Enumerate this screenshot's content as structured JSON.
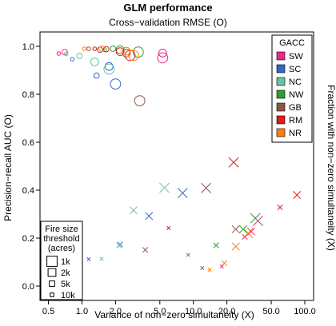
{
  "chart_data": {
    "type": "scatter",
    "title": "GLM performance",
    "subtitle": "Cross−validation RMSE (O)",
    "xlabel": "Variance of non−zero simultaneity (X)",
    "ylabel_left": "Precision−recall AUC (O)",
    "ylabel_right": "Fraction with non−zero simultaneity (X)",
    "x_scale": "log",
    "xlim": [
      0.42,
      120
    ],
    "ylim": [
      -0.06,
      1.06
    ],
    "x_ticks": [
      0.5,
      1.0,
      2.0,
      5.0,
      10.0,
      20.0,
      50.0,
      100.0
    ],
    "x_tick_labels": [
      "0.5",
      "1.0",
      "2.0",
      "5.0",
      "10.0",
      "20.0",
      "50.0",
      "100.0"
    ],
    "y_ticks": [
      0.0,
      0.2,
      0.4,
      0.6,
      0.8,
      1.0
    ],
    "y_tick_labels": [
      "0.0",
      "0.2",
      "0.4",
      "0.6",
      "0.8",
      "1.0"
    ],
    "legend_gacc": {
      "title": "GACC",
      "placement": "top-right",
      "entries": [
        {
          "label": "SW",
          "color": "#e7298a"
        },
        {
          "label": "SC",
          "color": "#3366cc"
        },
        {
          "label": "NC",
          "color": "#66c2a5"
        },
        {
          "label": "NW",
          "color": "#2ca02c"
        },
        {
          "label": "GB",
          "color": "#8c564b"
        },
        {
          "label": "RM",
          "color": "#e31a1c"
        },
        {
          "label": "NR",
          "color": "#ff7f0e"
        }
      ]
    },
    "legend_size": {
      "title_lines": [
        "Fire size",
        "threshold",
        "(acres)"
      ],
      "placement": "bottom-left",
      "entries": [
        {
          "label": "1k",
          "size": 4
        },
        {
          "label": "2k",
          "size": 3
        },
        {
          "label": "5k",
          "size": 2
        },
        {
          "label": "10k",
          "size": 1
        }
      ]
    },
    "series": [
      {
        "name": "SW",
        "color": "#e7298a",
        "o": [
          [
            5.3,
            0.952,
            4
          ],
          [
            5.3,
            0.972,
            3
          ],
          [
            0.7,
            0.976,
            2
          ],
          [
            0.62,
            0.97,
            1
          ]
        ],
        "x": [
          [
            38,
            0.272,
            4
          ],
          [
            33,
            0.227,
            3
          ],
          [
            29,
            0.205,
            2
          ],
          [
            18,
            0.082,
            1
          ]
        ]
      },
      {
        "name": "SC",
        "color": "#3366cc",
        "o": [
          [
            2.0,
            0.843,
            4
          ],
          [
            1.75,
            0.916,
            3
          ],
          [
            1.35,
            0.878,
            2
          ],
          [
            0.82,
            0.946,
            1
          ]
        ],
        "x": [
          [
            8,
            0.388,
            4
          ],
          [
            4,
            0.292,
            3
          ],
          [
            2.2,
            0.173,
            2
          ],
          [
            1.15,
            0.112,
            1
          ]
        ]
      },
      {
        "name": "NC",
        "color": "#66c2a5",
        "o": [
          [
            1.75,
            0.905,
            4
          ],
          [
            1.3,
            0.935,
            3
          ],
          [
            0.95,
            0.96,
            2
          ],
          [
            0.72,
            0.968,
            1
          ]
        ],
        "x": [
          [
            5.5,
            0.41,
            4
          ],
          [
            2.9,
            0.316,
            3
          ],
          [
            2.15,
            0.17,
            2
          ],
          [
            1.5,
            0.114,
            1
          ]
        ]
      },
      {
        "name": "NW",
        "color": "#2ca02c",
        "o": [
          [
            3.2,
            0.976,
            4
          ],
          [
            2.2,
            0.986,
            3
          ],
          [
            1.9,
            0.99,
            2
          ],
          [
            1.6,
            0.986,
            1
          ]
        ],
        "x": [
          [
            36,
            0.283,
            4
          ],
          [
            28,
            0.237,
            3
          ],
          [
            16,
            0.17,
            2
          ],
          [
            9,
            0.13,
            1
          ]
        ]
      },
      {
        "name": "GB",
        "color": "#8c564b",
        "o": [
          [
            3.3,
            0.773,
            4
          ],
          [
            2.5,
            0.972,
            3
          ],
          [
            1.45,
            0.986,
            2
          ],
          [
            1.15,
            0.99,
            1
          ]
        ],
        "x": [
          [
            13,
            0.409,
            4
          ],
          [
            24,
            0.237,
            3
          ],
          [
            3.7,
            0.151,
            2
          ],
          [
            12,
            0.075,
            1
          ]
        ]
      },
      {
        "name": "RM",
        "color": "#e31a1c",
        "o": [
          [
            2.7,
            0.962,
            4
          ],
          [
            2.2,
            0.978,
            3
          ],
          [
            1.65,
            0.988,
            2
          ],
          [
            1.3,
            0.99,
            1
          ]
        ],
        "x": [
          [
            23,
            0.516,
            4
          ],
          [
            85,
            0.38,
            3
          ],
          [
            60,
            0.328,
            2
          ],
          [
            6,
            0.242,
            1
          ]
        ]
      },
      {
        "name": "NR",
        "color": "#ff7f0e",
        "o": [
          [
            2.9,
            0.962,
            4
          ],
          [
            2.5,
            0.98,
            3
          ],
          [
            1.5,
            0.99,
            2
          ],
          [
            1.05,
            0.99,
            1
          ]
        ],
        "x": [
          [
            31,
            0.221,
            4
          ],
          [
            24,
            0.165,
            3
          ],
          [
            19,
            0.095,
            2
          ],
          [
            14,
            0.068,
            1
          ]
        ]
      }
    ]
  }
}
